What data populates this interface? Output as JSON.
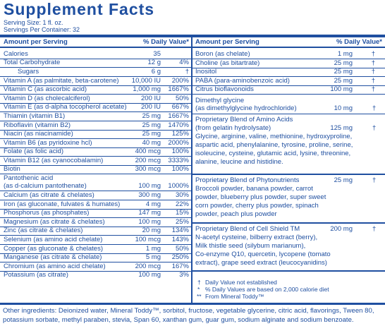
{
  "title": "Supplement Facts",
  "serving_size": "Serving Size: 1 fl. oz.",
  "servings_per_container": "Servings Per Container: 32",
  "left_header": {
    "amount": "Amount per Serving",
    "dv": "% Daily Value*"
  },
  "right_header": {
    "amount": "Amount per Serving",
    "dv": "% Daily Value*"
  },
  "left_rows": [
    {
      "name": "Calories",
      "amount": "35",
      "dv": ""
    },
    {
      "name": "Total Carbohydrate",
      "amount": "12 g",
      "dv": "4%"
    },
    {
      "name": "Sugars",
      "amount": "6 g",
      "dv": "†"
    },
    {
      "name": "Vitamin A (as palmitate, beta-carotene)",
      "amount": "10,000 IU",
      "dv": "200%"
    },
    {
      "name": "Vitamin C (as ascorbic acid)",
      "amount": "1,000 mg",
      "dv": "1667%"
    },
    {
      "name": "Vitamin D (as cholecalciferol)",
      "amount": "200 IU",
      "dv": "50%"
    },
    {
      "name": "Vitamin E (as d-alpha tocopherol acetate)",
      "amount": "200 IU",
      "dv": "667%"
    },
    {
      "name": "Thiamin (vitamin B1)",
      "amount": "25 mg",
      "dv": "1667%"
    },
    {
      "name": "Riboflavin (vitamin B2)",
      "amount": "25 mg",
      "dv": "1470%"
    },
    {
      "name": "Niacin (as niacinamide)",
      "amount": "25 mg",
      "dv": "125%"
    },
    {
      "name": "Vitamin B6 (as pyridoxine hcl)",
      "amount": "40 mg",
      "dv": "2000%"
    },
    {
      "name": "Folate (as folic acid)",
      "amount": "400 mcg",
      "dv": "100%"
    },
    {
      "name": "Vitamin B12 (as cyanocobalamin)",
      "amount": "200 mcg",
      "dv": "3333%"
    },
    {
      "name": "Biotin",
      "amount": "300 mcg",
      "dv": "100%"
    },
    {
      "name": "Pantothenic acid",
      "amount": "",
      "dv": ""
    },
    {
      "name": "(as d-calcium pantothenate)",
      "amount": "100 mg",
      "dv": "1000%"
    },
    {
      "name": "Calcium (as citrate & chelates)",
      "amount": "300 mg",
      "dv": "30%"
    },
    {
      "name": "Iron (as gluconate, fulvates & humates)",
      "amount": "4 mg",
      "dv": "22%"
    },
    {
      "name": "Phosphorus (as phosphates)",
      "amount": "147 mg",
      "dv": "15%"
    },
    {
      "name": "Magnesium (as citrate & chelates)",
      "amount": "100 mg",
      "dv": "25%"
    },
    {
      "name": "Zinc (as citrate & chelates)",
      "amount": "20 mg",
      "dv": "134%"
    },
    {
      "name": "Selenium (as amino acid chelate)",
      "amount": "100 mcg",
      "dv": "143%"
    },
    {
      "name": "Copper (as gluconate & chelates)",
      "amount": "1 mg",
      "dv": "50%"
    },
    {
      "name": "Manganese (as citrate & chelate)",
      "amount": "5 mg",
      "dv": "250%"
    },
    {
      "name": "Chromium (as amino acid chelate)",
      "amount": "200 mcg",
      "dv": "167%"
    },
    {
      "name": "Potassium (as citrate)",
      "amount": "100 mg",
      "dv": "3%"
    }
  ],
  "right_rows": [
    {
      "name": "Boron (as chelate)",
      "amount": "1 mg",
      "dv": "†"
    },
    {
      "name": "Choline (as bitartrate)",
      "amount": "25 mg",
      "dv": "†"
    },
    {
      "name": "Inositol",
      "amount": "25 mg",
      "dv": "†"
    },
    {
      "name": "PABA (para-aminobenzoic acid)",
      "amount": "25 mg",
      "dv": "†"
    },
    {
      "name": "Citrus bioflavonoids",
      "amount": "100 mg",
      "dv": "†"
    }
  ],
  "dimethylglycine": {
    "line1": "Dimethyl glycine",
    "line2": "(as dimethylglycine hydrochloride)",
    "amount": "10 mg",
    "dv": "†"
  },
  "amino_blend": {
    "line1": "Proprietary Blend of Amino Acids",
    "line2": "(from gelatin hydrolysate)",
    "amount": "125 mg",
    "dv": "†",
    "lines": [
      "Glycine, arginine, valine, methionine, hydroxyproline,",
      "aspartic acid, phenylalanine, tyrosine, proline, serine,",
      "isoleucine, cysteine, glutamic acid, lysine, threonine,",
      "alanine, leucine and histidine."
    ]
  },
  "phyto_blend": {
    "line1": "Proprietary Blend of Phytonutrients",
    "amount": "25 mg",
    "dv": "†",
    "lines": [
      "Broccoli powder, banana powder, carrot",
      "powder, blueberry plus powder, super sweet",
      "corn powder, cherry plus powder, spinach",
      "powder, peach plus powder"
    ]
  },
  "cell_shield": {
    "line1": "Proprietary Blend of Cell Shield TM",
    "amount": "200 mg",
    "dv": "†",
    "lines": [
      "N-acetyl cysteine, bilberry extract  (berry),",
      "Milk thistle seed (silybum marianum),",
      "Co-enzyme Q10, quercetin, lycopene (tomato",
      "extract), grape seed extract (leucocyanidins)"
    ]
  },
  "footnotes": [
    {
      "sym": "†",
      "text": "Daily Value not established"
    },
    {
      "sym": "*",
      "text": "% Daily Values are based on 2,000 calorie diet"
    },
    {
      "sym": "**",
      "text": "From Mineral Toddy™"
    }
  ],
  "other_ingredients": "Other ingredients:  Deionized water, Mineral Toddy™, sorbitol, fructose, vegetable glycerine, citric acid, flavorings, Tween 80, potassium sorbate, methyl paraben, stevia, Span 60, xanthan gum, guar gum, sodium alginate and sodium benzoate.",
  "colors": {
    "ink": "#1f4fa0",
    "background": "#ffffff"
  }
}
